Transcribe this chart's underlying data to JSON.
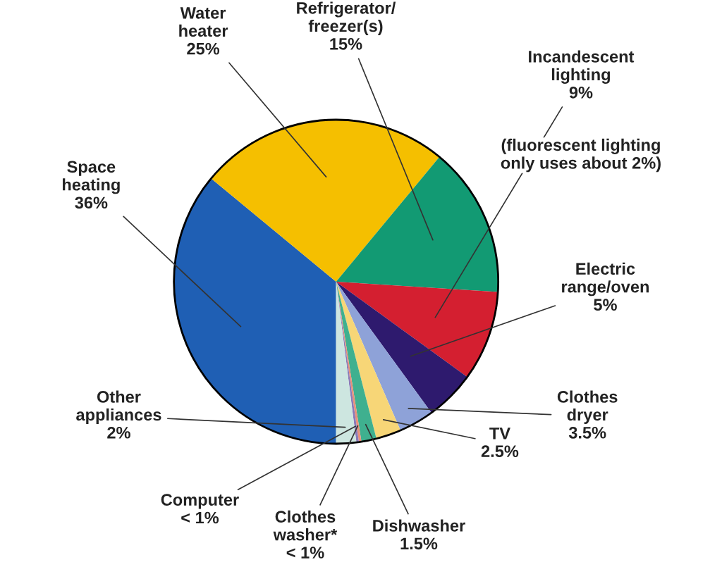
{
  "chart_data": {
    "type": "pie",
    "categories": [
      "Space\nheating",
      "Water\nheater",
      "Refrigerator/\nfreezer(s)",
      "Incandescent\nlighting",
      "Electric\nrange/oven",
      "Clothes\ndryer",
      "TV",
      "Dishwasher",
      "Clothes\nwasher*",
      "Computer",
      "Other\nappliances"
    ],
    "values": [
      36,
      25,
      15,
      9,
      5,
      3.5,
      2.5,
      1.5,
      0.25,
      0.25,
      2
    ],
    "value_labels": [
      "36%",
      "25%",
      "15%",
      "9%",
      "5%",
      "3.5%",
      "2.5%",
      "1.5%",
      "< 1%",
      "< 1%",
      "2%"
    ],
    "colors": [
      "#1f5fb4",
      "#f5bf00",
      "#129a73",
      "#d41f30",
      "#2e1a6e",
      "#8ea2d8",
      "#f7d677",
      "#3fb08f",
      "#e8907a",
      "#8a7ab8",
      "#cde6e0"
    ],
    "annotations": [
      "(fluorescent lighting\nonly uses about 2%)"
    ]
  }
}
